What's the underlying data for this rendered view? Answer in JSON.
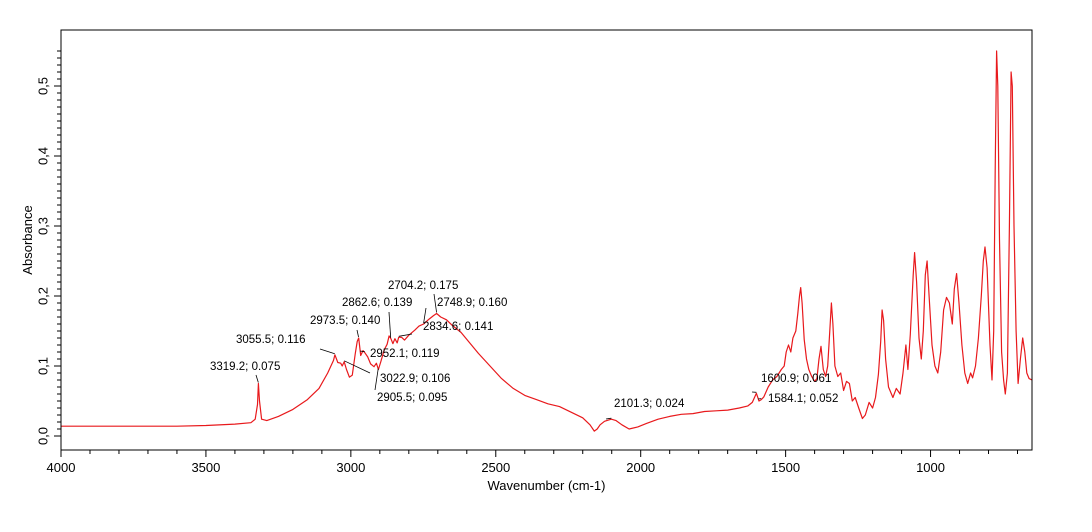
{
  "chart_data": {
    "type": "line",
    "title": "",
    "xlabel": "Wavenumber (cm-1)",
    "ylabel": "Absorbance",
    "xlim": [
      4000,
      650
    ],
    "ylim": [
      -0.02,
      0.58
    ],
    "x_reversed": true,
    "grid": false,
    "legend": "none",
    "line_color": "#e8191c",
    "xticks": [
      {
        "value": 4000,
        "label": "4000"
      },
      {
        "value": 3500,
        "label": "3500"
      },
      {
        "value": 3000,
        "label": "3000"
      },
      {
        "value": 2500,
        "label": "2500"
      },
      {
        "value": 2000,
        "label": "2000"
      },
      {
        "value": 1500,
        "label": "1500"
      },
      {
        "value": 1000,
        "label": "1000"
      }
    ],
    "yticks": [
      {
        "value": 0.0,
        "label": "0,0"
      },
      {
        "value": 0.1,
        "label": "0,1"
      },
      {
        "value": 0.2,
        "label": "0,2"
      },
      {
        "value": 0.3,
        "label": "0,3"
      },
      {
        "value": 0.4,
        "label": "0,4"
      },
      {
        "value": 0.5,
        "label": "0,5"
      }
    ],
    "series": [
      {
        "values": [
          [
            4000,
            0.014
          ],
          [
            3800,
            0.014
          ],
          [
            3600,
            0.014
          ],
          [
            3500,
            0.015
          ],
          [
            3400,
            0.017
          ],
          [
            3345,
            0.019
          ],
          [
            3330,
            0.024
          ],
          [
            3322,
            0.045
          ],
          [
            3319,
            0.075
          ],
          [
            3315,
            0.05
          ],
          [
            3308,
            0.024
          ],
          [
            3290,
            0.022
          ],
          [
            3250,
            0.028
          ],
          [
            3200,
            0.038
          ],
          [
            3150,
            0.052
          ],
          [
            3110,
            0.068
          ],
          [
            3080,
            0.09
          ],
          [
            3060,
            0.108
          ],
          [
            3055,
            0.116
          ],
          [
            3045,
            0.105
          ],
          [
            3035,
            0.104
          ],
          [
            3030,
            0.1
          ],
          [
            3023,
            0.106
          ],
          [
            3015,
            0.095
          ],
          [
            3005,
            0.084
          ],
          [
            2995,
            0.087
          ],
          [
            2985,
            0.117
          ],
          [
            2978,
            0.135
          ],
          [
            2973,
            0.14
          ],
          [
            2966,
            0.115
          ],
          [
            2958,
            0.122
          ],
          [
            2952,
            0.119
          ],
          [
            2942,
            0.113
          ],
          [
            2932,
            0.103
          ],
          [
            2920,
            0.099
          ],
          [
            2912,
            0.104
          ],
          [
            2905,
            0.095
          ],
          [
            2896,
            0.107
          ],
          [
            2885,
            0.123
          ],
          [
            2875,
            0.131
          ],
          [
            2868,
            0.143
          ],
          [
            2862,
            0.139
          ],
          [
            2855,
            0.132
          ],
          [
            2848,
            0.139
          ],
          [
            2840,
            0.133
          ],
          [
            2835,
            0.141
          ],
          [
            2825,
            0.141
          ],
          [
            2815,
            0.137
          ],
          [
            2800,
            0.144
          ],
          [
            2780,
            0.151
          ],
          [
            2765,
            0.157
          ],
          [
            2749,
            0.16
          ],
          [
            2730,
            0.167
          ],
          [
            2715,
            0.172
          ],
          [
            2704,
            0.175
          ],
          [
            2690,
            0.17
          ],
          [
            2670,
            0.166
          ],
          [
            2650,
            0.158
          ],
          [
            2620,
            0.148
          ],
          [
            2590,
            0.133
          ],
          [
            2560,
            0.118
          ],
          [
            2520,
            0.1
          ],
          [
            2480,
            0.082
          ],
          [
            2440,
            0.068
          ],
          [
            2400,
            0.058
          ],
          [
            2360,
            0.052
          ],
          [
            2320,
            0.046
          ],
          [
            2280,
            0.042
          ],
          [
            2240,
            0.034
          ],
          [
            2200,
            0.026
          ],
          [
            2175,
            0.016
          ],
          [
            2160,
            0.007
          ],
          [
            2150,
            0.01
          ],
          [
            2140,
            0.016
          ],
          [
            2125,
            0.021
          ],
          [
            2110,
            0.023
          ],
          [
            2101,
            0.024
          ],
          [
            2085,
            0.022
          ],
          [
            2065,
            0.016
          ],
          [
            2040,
            0.01
          ],
          [
            2010,
            0.013
          ],
          [
            1980,
            0.018
          ],
          [
            1940,
            0.024
          ],
          [
            1900,
            0.028
          ],
          [
            1860,
            0.031
          ],
          [
            1820,
            0.032
          ],
          [
            1780,
            0.035
          ],
          [
            1740,
            0.036
          ],
          [
            1700,
            0.037
          ],
          [
            1660,
            0.04
          ],
          [
            1630,
            0.043
          ],
          [
            1615,
            0.048
          ],
          [
            1601,
            0.061
          ],
          [
            1592,
            0.05
          ],
          [
            1584,
            0.052
          ],
          [
            1575,
            0.056
          ],
          [
            1560,
            0.07
          ],
          [
            1545,
            0.08
          ],
          [
            1530,
            0.085
          ],
          [
            1515,
            0.095
          ],
          [
            1505,
            0.1
          ],
          [
            1498,
            0.12
          ],
          [
            1490,
            0.13
          ],
          [
            1482,
            0.12
          ],
          [
            1475,
            0.14
          ],
          [
            1465,
            0.15
          ],
          [
            1458,
            0.175
          ],
          [
            1452,
            0.2
          ],
          [
            1448,
            0.212
          ],
          [
            1443,
            0.19
          ],
          [
            1436,
            0.138
          ],
          [
            1428,
            0.11
          ],
          [
            1420,
            0.095
          ],
          [
            1410,
            0.085
          ],
          [
            1400,
            0.078
          ],
          [
            1392,
            0.082
          ],
          [
            1385,
            0.11
          ],
          [
            1378,
            0.128
          ],
          [
            1370,
            0.095
          ],
          [
            1362,
            0.085
          ],
          [
            1355,
            0.1
          ],
          [
            1348,
            0.148
          ],
          [
            1342,
            0.19
          ],
          [
            1337,
            0.16
          ],
          [
            1330,
            0.1
          ],
          [
            1320,
            0.085
          ],
          [
            1310,
            0.09
          ],
          [
            1300,
            0.065
          ],
          [
            1290,
            0.078
          ],
          [
            1280,
            0.075
          ],
          [
            1270,
            0.05
          ],
          [
            1260,
            0.055
          ],
          [
            1248,
            0.04
          ],
          [
            1235,
            0.025
          ],
          [
            1225,
            0.03
          ],
          [
            1212,
            0.048
          ],
          [
            1200,
            0.04
          ],
          [
            1190,
            0.055
          ],
          [
            1180,
            0.088
          ],
          [
            1172,
            0.135
          ],
          [
            1167,
            0.18
          ],
          [
            1162,
            0.165
          ],
          [
            1155,
            0.11
          ],
          [
            1145,
            0.07
          ],
          [
            1130,
            0.055
          ],
          [
            1118,
            0.068
          ],
          [
            1105,
            0.06
          ],
          [
            1095,
            0.09
          ],
          [
            1085,
            0.13
          ],
          [
            1078,
            0.095
          ],
          [
            1070,
            0.145
          ],
          [
            1060,
            0.23
          ],
          [
            1055,
            0.262
          ],
          [
            1048,
            0.22
          ],
          [
            1040,
            0.14
          ],
          [
            1032,
            0.11
          ],
          [
            1025,
            0.15
          ],
          [
            1018,
            0.23
          ],
          [
            1012,
            0.25
          ],
          [
            1005,
            0.2
          ],
          [
            995,
            0.13
          ],
          [
            985,
            0.1
          ],
          [
            975,
            0.09
          ],
          [
            965,
            0.12
          ],
          [
            955,
            0.18
          ],
          [
            945,
            0.198
          ],
          [
            935,
            0.19
          ],
          [
            925,
            0.16
          ],
          [
            918,
            0.21
          ],
          [
            910,
            0.232
          ],
          [
            902,
            0.19
          ],
          [
            892,
            0.13
          ],
          [
            882,
            0.09
          ],
          [
            872,
            0.075
          ],
          [
            862,
            0.09
          ],
          [
            855,
            0.083
          ],
          [
            845,
            0.1
          ],
          [
            835,
            0.14
          ],
          [
            825,
            0.2
          ],
          [
            818,
            0.25
          ],
          [
            812,
            0.27
          ],
          [
            805,
            0.24
          ],
          [
            795,
            0.13
          ],
          [
            788,
            0.08
          ],
          [
            782,
            0.15
          ],
          [
            777,
            0.38
          ],
          [
            772,
            0.55
          ],
          [
            768,
            0.5
          ],
          [
            762,
            0.28
          ],
          [
            755,
            0.12
          ],
          [
            748,
            0.08
          ],
          [
            742,
            0.06
          ],
          [
            735,
            0.09
          ],
          [
            728,
            0.3
          ],
          [
            722,
            0.52
          ],
          [
            718,
            0.5
          ],
          [
            712,
            0.3
          ],
          [
            705,
            0.15
          ],
          [
            698,
            0.075
          ],
          [
            690,
            0.11
          ],
          [
            682,
            0.14
          ],
          [
            675,
            0.12
          ],
          [
            668,
            0.09
          ],
          [
            660,
            0.082
          ],
          [
            650,
            0.08
          ]
        ]
      }
    ],
    "annotations": [
      {
        "text": "3319.2; 0.075",
        "x": 3319.2,
        "y": 0.075
      },
      {
        "text": "3055.5; 0.116",
        "x": 3055.5,
        "y": 0.116
      },
      {
        "text": "2973.5; 0.140",
        "x": 2973.5,
        "y": 0.14
      },
      {
        "text": "2862.6; 0.139",
        "x": 2862.6,
        "y": 0.139
      },
      {
        "text": "2748.9; 0.160",
        "x": 2748.9,
        "y": 0.16
      },
      {
        "text": "2704.2; 0.175",
        "x": 2704.2,
        "y": 0.175
      },
      {
        "text": "2834.6; 0.141",
        "x": 2834.6,
        "y": 0.141
      },
      {
        "text": "2952.1; 0.119",
        "x": 2952.1,
        "y": 0.119
      },
      {
        "text": "3022.9; 0.106",
        "x": 3022.9,
        "y": 0.106
      },
      {
        "text": "2905.5; 0.095",
        "x": 2905.5,
        "y": 0.095
      },
      {
        "text": "2101.3; 0.024",
        "x": 2101.3,
        "y": 0.024
      },
      {
        "text": "1600.9; 0.061",
        "x": 1600.9,
        "y": 0.061
      },
      {
        "text": "1584.1; 0.052",
        "x": 1584.1,
        "y": 0.052
      }
    ]
  }
}
